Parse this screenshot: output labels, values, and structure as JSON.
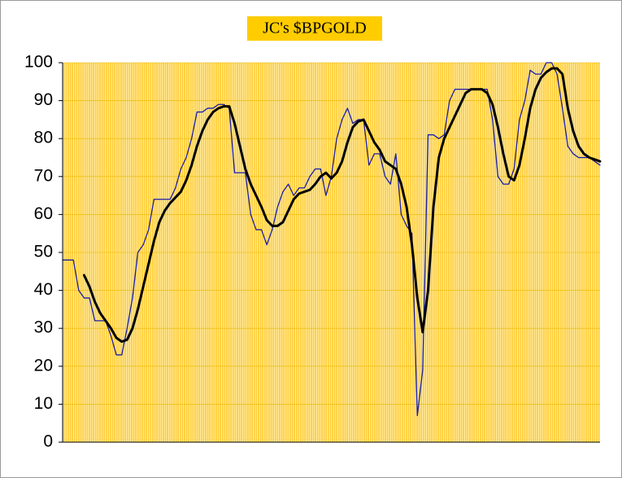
{
  "chart_data": {
    "type": "line",
    "title": "JC's $BPGOLD",
    "ylim": [
      0,
      100
    ],
    "yticks": [
      0,
      10,
      20,
      30,
      40,
      50,
      60,
      70,
      80,
      90,
      100
    ],
    "grid": true,
    "series": [
      {
        "color": "#1c1ca8",
        "values": [
          48,
          48,
          48,
          40,
          38,
          38,
          32,
          32,
          32,
          28,
          23,
          23,
          30,
          38,
          50,
          52,
          56,
          64,
          64,
          64,
          64,
          67,
          72,
          75,
          80,
          87,
          87,
          88,
          88,
          89,
          89,
          88,
          71,
          71,
          71,
          60,
          56,
          56,
          52,
          56,
          62,
          66,
          68,
          65,
          67,
          67,
          70,
          72,
          72,
          65,
          70,
          80,
          85,
          88,
          84,
          85,
          85,
          73,
          76,
          76,
          70,
          68,
          76,
          60,
          57,
          55,
          7,
          19,
          81,
          81,
          80,
          81,
          90,
          93,
          93,
          93,
          93,
          93,
          93,
          93,
          85,
          70,
          68,
          68,
          72,
          85,
          90,
          98,
          97,
          97,
          100,
          100,
          97,
          88,
          78,
          76,
          75,
          75,
          75,
          74,
          73
        ]
      },
      {
        "color": "#000000",
        "values": [
          null,
          null,
          null,
          null,
          44,
          41,
          37,
          34,
          32,
          30,
          27.5,
          26.5,
          27,
          30,
          35,
          41,
          47,
          53,
          58,
          61,
          63,
          64.5,
          66,
          69,
          73,
          78,
          82,
          85,
          87,
          88,
          88.5,
          88.5,
          84,
          78,
          72,
          68,
          65,
          62,
          58.5,
          57,
          57,
          58,
          61,
          64,
          65.5,
          66,
          66.5,
          68,
          70,
          71,
          69.5,
          71,
          74,
          79,
          83,
          84.5,
          85,
          82,
          79,
          77,
          74,
          73,
          72,
          68,
          62,
          52,
          38,
          29,
          40,
          62,
          75,
          80,
          83,
          86,
          89,
          92,
          93,
          93,
          93,
          92,
          89,
          83,
          76,
          70,
          69,
          73,
          80,
          88,
          93,
          96,
          97.5,
          98.5,
          98.5,
          97,
          88,
          82,
          78,
          76,
          75,
          74.5,
          74
        ]
      }
    ]
  }
}
